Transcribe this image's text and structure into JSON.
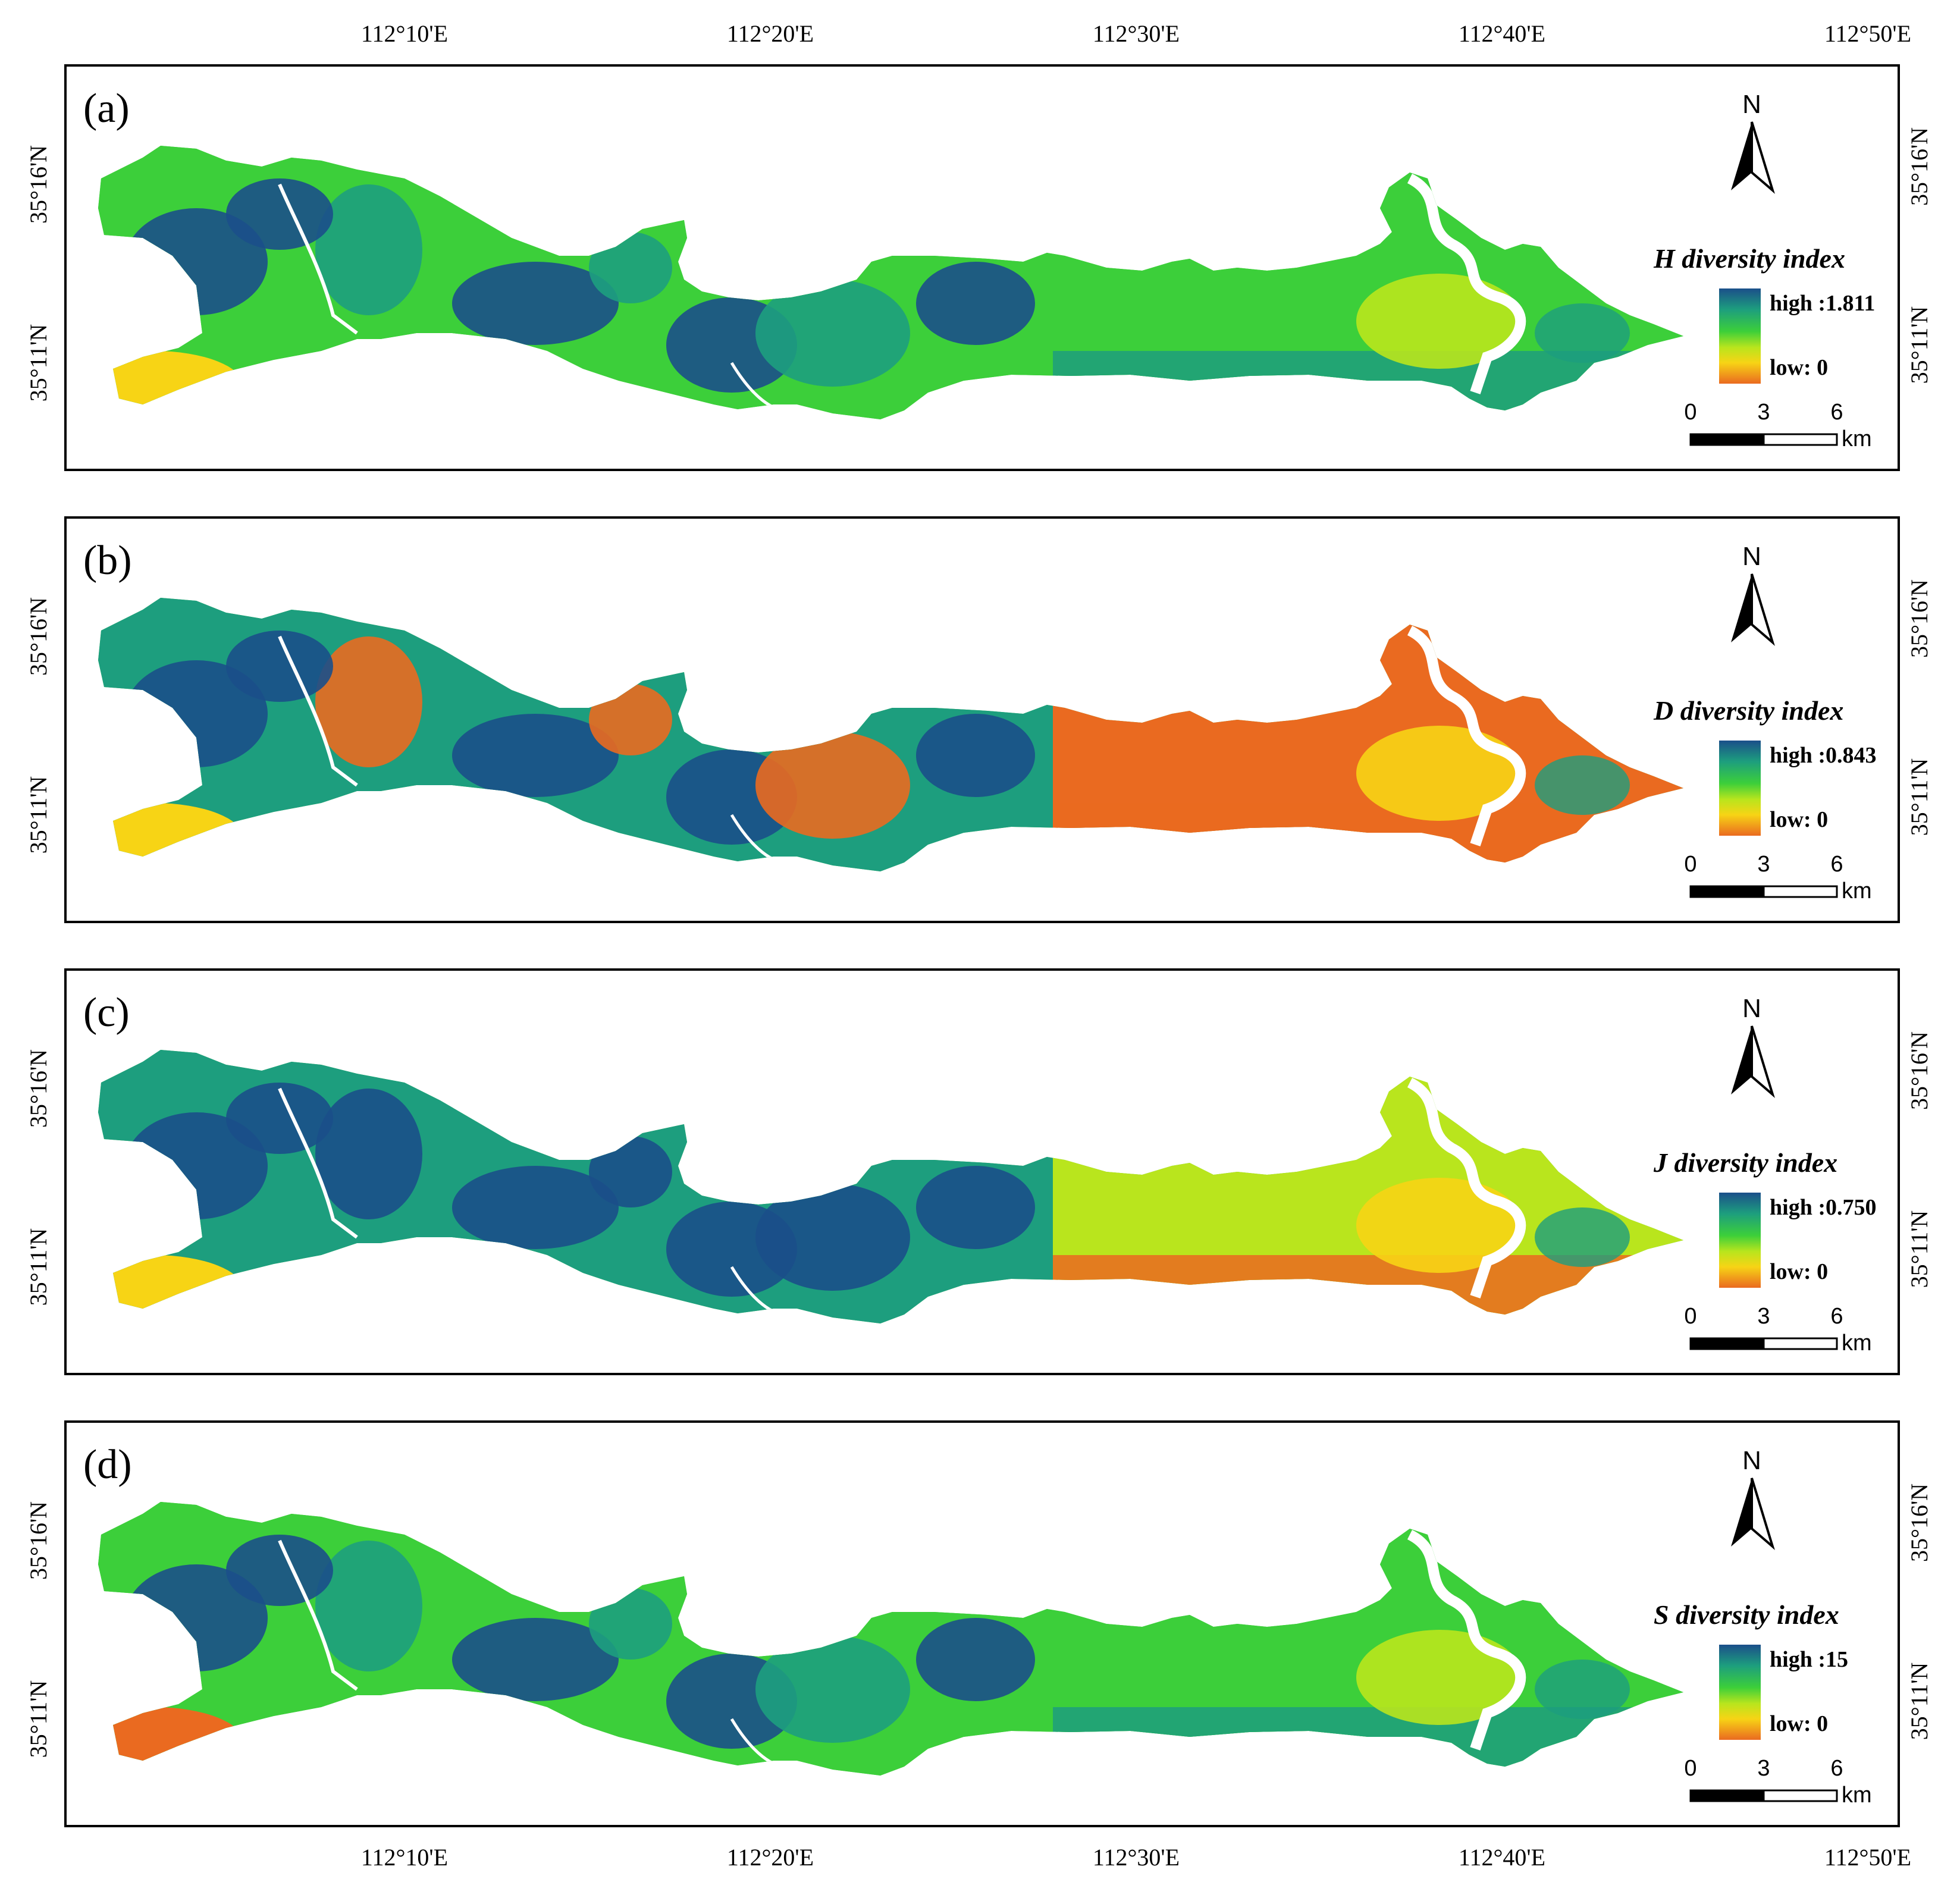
{
  "longitude_labels": [
    "112°10'E",
    "112°20'E",
    "112°30'E",
    "112°40'E",
    "112°50'E"
  ],
  "latitude_labels": [
    "35°16'N",
    "35°11'N"
  ],
  "colors": {
    "high": "#1b4f8a",
    "mid_high": "#1d9e7e",
    "mid": "#3ccf3a",
    "mid_low": "#b9e51d",
    "low_mid": "#f7d415",
    "low": "#ea6a20",
    "river": "#ffffff"
  },
  "scale_bar": {
    "ticks": [
      "0",
      "3",
      "6"
    ],
    "unit": "km"
  },
  "north_label": "N",
  "panels": [
    {
      "label": "(a)",
      "legend_title": "H diversity index",
      "high_label": "high :1.811",
      "low_label": "low: 0",
      "east_tone": "green"
    },
    {
      "label": "(b)",
      "legend_title": "D diversity index",
      "high_label": "high :0.843",
      "low_label": "low: 0",
      "east_tone": "orange"
    },
    {
      "label": "(c)",
      "legend_title": "J diversity index",
      "high_label": "high :0.750",
      "low_label": "low: 0",
      "east_tone": "yellow"
    },
    {
      "label": "(d)",
      "legend_title": "S diversity index",
      "high_label": "high :15",
      "low_label": "low: 0",
      "east_tone": "green"
    }
  ]
}
